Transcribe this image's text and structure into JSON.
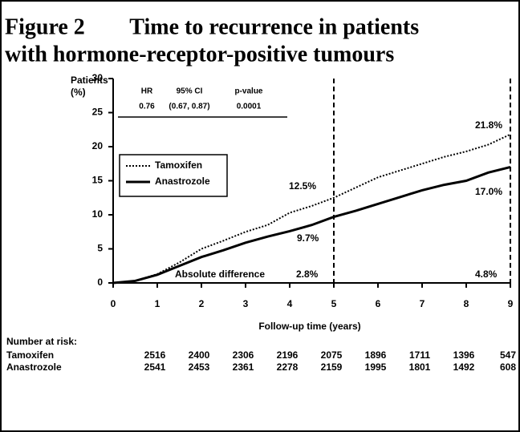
{
  "chart_data": {
    "type": "line",
    "title": "Figure 2        Time to recurrence in patients",
    "title_line2": "with hormone-receptor-positive tumours",
    "y_label": "Patients",
    "y_label_unit": "(%)",
    "x_label": "Follow-up time (years)",
    "x": [
      0,
      0.5,
      1,
      1.5,
      2,
      2.5,
      3,
      3.5,
      4,
      4.5,
      5,
      5.5,
      6,
      6.5,
      7,
      7.5,
      8,
      8.5,
      9
    ],
    "series": [
      {
        "name": "Tamoxifen",
        "color": "#000000",
        "line_style": "dotted",
        "values": [
          0,
          0.3,
          1.3,
          3,
          5,
          6.2,
          7.5,
          8.5,
          10.3,
          11.3,
          12.5,
          14,
          15.5,
          16.5,
          17.5,
          18.5,
          19.3,
          20.3,
          21.8
        ]
      },
      {
        "name": "Anastrozole",
        "color": "#000000",
        "line_style": "solid",
        "values": [
          0,
          0.3,
          1.2,
          2.5,
          3.8,
          4.8,
          5.9,
          6.8,
          7.6,
          8.5,
          9.7,
          10.6,
          11.6,
          12.6,
          13.6,
          14.4,
          15,
          16.2,
          17
        ]
      }
    ],
    "xlim": [
      0,
      9
    ],
    "xticks": [
      0,
      1,
      2,
      3,
      4,
      5,
      6,
      7,
      8,
      9
    ],
    "ylim": [
      0,
      30
    ],
    "yticks": [
      0,
      5,
      10,
      15,
      20,
      25,
      30
    ],
    "reference_lines": [
      5,
      9
    ],
    "annotations": [
      "12.5%",
      "9.7%",
      "Absolute difference",
      "2.8%",
      "21.8%",
      "17.0%",
      "4.8%"
    ],
    "stats_table": {
      "header": [
        "HR",
        "95% CI",
        "p-value"
      ],
      "row": [
        "0.76",
        "(0.67, 0.87)",
        "0.0001"
      ]
    },
    "risk_table": {
      "title": "Number at risk:",
      "rows": [
        {
          "name": "Tamoxifen",
          "values": [
            2516,
            2400,
            2306,
            2196,
            2075,
            1896,
            1711,
            1396,
            547
          ]
        },
        {
          "name": "Anastrozole",
          "values": [
            2541,
            2453,
            2361,
            2278,
            2159,
            1995,
            1801,
            1492,
            608
          ]
        }
      ]
    }
  }
}
